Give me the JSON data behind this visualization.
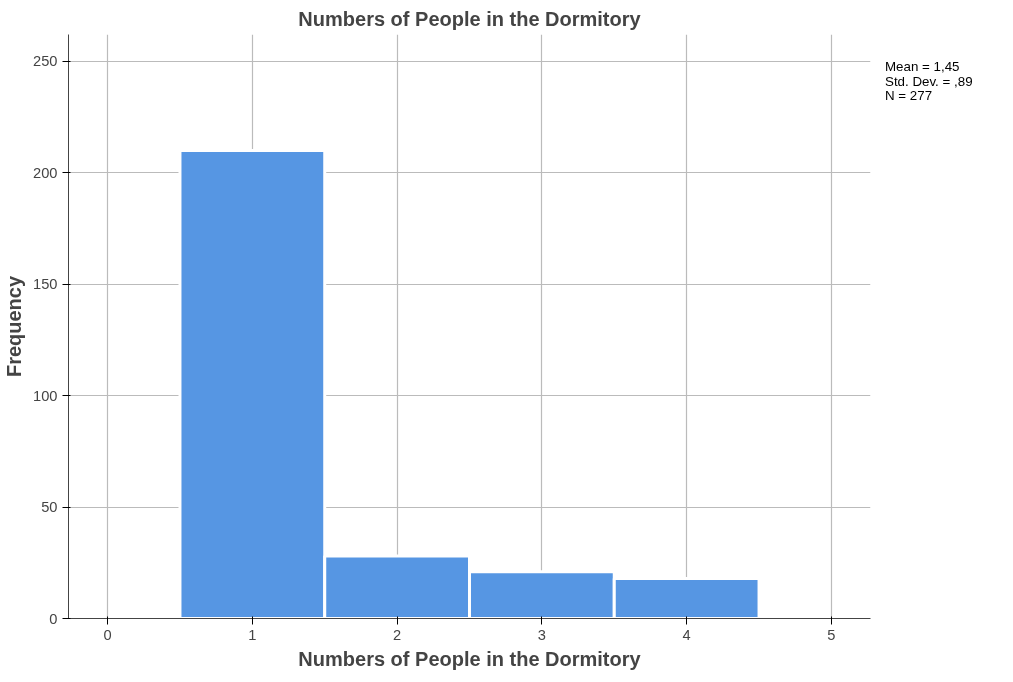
{
  "chart_data": {
    "type": "histogram",
    "title": "Numbers of People in the Dormitory",
    "xlabel": "Numbers of People in the Dormitory",
    "ylabel": "Frequency",
    "bins": [
      0.5,
      1.5,
      2.5,
      3.5,
      4.5
    ],
    "values": [
      210,
      28,
      21,
      18
    ],
    "color": "#5696e3",
    "xlim": [
      -0.27,
      5.27
    ],
    "xticks": [
      0,
      1,
      2,
      3,
      4,
      5
    ],
    "ylim": [
      0,
      262
    ],
    "yticks": [
      0,
      50,
      100,
      150,
      200,
      250
    ],
    "grid": true,
    "annotations": [
      "Mean = 1,45",
      "Std. Dev. = ,89",
      "N = 277"
    ]
  }
}
